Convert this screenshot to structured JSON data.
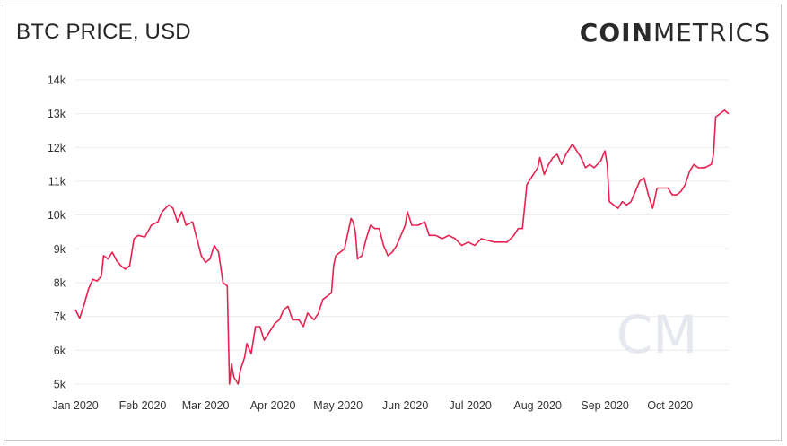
{
  "header": {
    "title": "BTC PRICE, USD"
  },
  "brand": {
    "bold": "COIN",
    "light": "METRICS",
    "watermark": "CM"
  },
  "chart_data": {
    "type": "line",
    "title": "BTC PRICE, USD",
    "xlabel": "",
    "ylabel": "",
    "ylim": [
      5000,
      14000
    ],
    "yticks": [
      5000,
      6000,
      7000,
      8000,
      9000,
      10000,
      11000,
      12000,
      13000,
      14000
    ],
    "ytick_labels": [
      "5k",
      "6k",
      "7k",
      "8k",
      "9k",
      "10k",
      "11k",
      "12k",
      "13k",
      "14k"
    ],
    "xlim": [
      "2020-01-01",
      "2020-10-28"
    ],
    "xticks": [
      "2020-01-01",
      "2020-02-01",
      "2020-03-01",
      "2020-04-01",
      "2020-05-01",
      "2020-06-01",
      "2020-07-01",
      "2020-08-01",
      "2020-09-01",
      "2020-10-01"
    ],
    "xtick_labels": [
      "Jan 2020",
      "Feb 2020",
      "Mar 2020",
      "Apr 2020",
      "May 2020",
      "Jun 2020",
      "Jul 2020",
      "Aug 2020",
      "Sep 2020",
      "Oct 2020"
    ],
    "grid": "horizontal",
    "line_color": "#e8214f",
    "series": [
      {
        "x": [
          "2020-01-01",
          "2020-01-03",
          "2020-01-05",
          "2020-01-07",
          "2020-01-09",
          "2020-01-11",
          "2020-01-13",
          "2020-01-14",
          "2020-01-16",
          "2020-01-18",
          "2020-01-20",
          "2020-01-22",
          "2020-01-24",
          "2020-01-26",
          "2020-01-28",
          "2020-01-30",
          "2020-02-02",
          "2020-02-05",
          "2020-02-08",
          "2020-02-10",
          "2020-02-13",
          "2020-02-15",
          "2020-02-17",
          "2020-02-19",
          "2020-02-21",
          "2020-02-24",
          "2020-02-26",
          "2020-02-28",
          "2020-03-01",
          "2020-03-03",
          "2020-03-05",
          "2020-03-07",
          "2020-03-09",
          "2020-03-11",
          "2020-03-12",
          "2020-03-13",
          "2020-03-14",
          "2020-03-16",
          "2020-03-17",
          "2020-03-19",
          "2020-03-20",
          "2020-03-22",
          "2020-03-24",
          "2020-03-26",
          "2020-03-28",
          "2020-03-30",
          "2020-04-02",
          "2020-04-04",
          "2020-04-06",
          "2020-04-08",
          "2020-04-10",
          "2020-04-13",
          "2020-04-15",
          "2020-04-17",
          "2020-04-20",
          "2020-04-22",
          "2020-04-24",
          "2020-04-26",
          "2020-04-28",
          "2020-04-29",
          "2020-04-30",
          "2020-05-02",
          "2020-05-04",
          "2020-05-07",
          "2020-05-08",
          "2020-05-09",
          "2020-05-10",
          "2020-05-12",
          "2020-05-14",
          "2020-05-16",
          "2020-05-18",
          "2020-05-20",
          "2020-05-22",
          "2020-05-24",
          "2020-05-26",
          "2020-05-28",
          "2020-05-30",
          "2020-06-01",
          "2020-06-02",
          "2020-06-04",
          "2020-06-07",
          "2020-06-10",
          "2020-06-12",
          "2020-06-15",
          "2020-06-18",
          "2020-06-21",
          "2020-06-24",
          "2020-06-27",
          "2020-06-30",
          "2020-07-03",
          "2020-07-06",
          "2020-07-09",
          "2020-07-12",
          "2020-07-15",
          "2020-07-18",
          "2020-07-21",
          "2020-07-23",
          "2020-07-25",
          "2020-07-27",
          "2020-07-28",
          "2020-07-30",
          "2020-08-01",
          "2020-08-02",
          "2020-08-04",
          "2020-08-06",
          "2020-08-08",
          "2020-08-10",
          "2020-08-12",
          "2020-08-14",
          "2020-08-17",
          "2020-08-19",
          "2020-08-21",
          "2020-08-23",
          "2020-08-25",
          "2020-08-27",
          "2020-08-30",
          "2020-09-01",
          "2020-09-02",
          "2020-09-03",
          "2020-09-05",
          "2020-09-07",
          "2020-09-09",
          "2020-09-11",
          "2020-09-13",
          "2020-09-15",
          "2020-09-17",
          "2020-09-19",
          "2020-09-21",
          "2020-09-23",
          "2020-09-25",
          "2020-09-27",
          "2020-09-30",
          "2020-10-02",
          "2020-10-04",
          "2020-10-06",
          "2020-10-08",
          "2020-10-10",
          "2020-10-12",
          "2020-10-14",
          "2020-10-17",
          "2020-10-20",
          "2020-10-21",
          "2020-10-22",
          "2020-10-24",
          "2020-10-26",
          "2020-10-28"
        ],
        "y": [
          7200,
          6950,
          7350,
          7800,
          8100,
          8050,
          8200,
          8800,
          8700,
          8900,
          8650,
          8500,
          8400,
          8500,
          9300,
          9400,
          9350,
          9700,
          9800,
          10100,
          10300,
          10200,
          9800,
          10100,
          9700,
          9800,
          9300,
          8800,
          8600,
          8700,
          9100,
          8900,
          8000,
          7900,
          5000,
          5600,
          5200,
          5000,
          5400,
          5800,
          6200,
          5900,
          6700,
          6700,
          6300,
          6500,
          6800,
          6900,
          7200,
          7300,
          6900,
          6900,
          6700,
          7100,
          6900,
          7100,
          7500,
          7600,
          7700,
          8500,
          8800,
          8900,
          9000,
          9900,
          9800,
          9500,
          8700,
          8800,
          9300,
          9700,
          9600,
          9600,
          9100,
          8800,
          8900,
          9100,
          9400,
          9700,
          10100,
          9700,
          9700,
          9800,
          9400,
          9400,
          9300,
          9400,
          9300,
          9100,
          9200,
          9100,
          9300,
          9250,
          9200,
          9200,
          9200,
          9400,
          9600,
          9600,
          10900,
          11000,
          11200,
          11400,
          11700,
          11200,
          11500,
          11700,
          11800,
          11500,
          11800,
          12100,
          11900,
          11700,
          11400,
          11500,
          11400,
          11600,
          11900,
          11500,
          10400,
          10300,
          10200,
          10400,
          10300,
          10400,
          10700,
          11000,
          11100,
          10600,
          10200,
          10800,
          10800,
          10800,
          10600,
          10600,
          10700,
          10900,
          11300,
          11500,
          11400,
          11400,
          11500,
          11800,
          12900,
          13000,
          13100,
          13000
        ]
      }
    ]
  }
}
